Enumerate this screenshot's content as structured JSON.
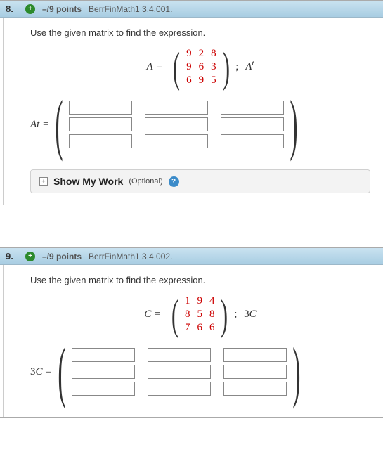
{
  "questions": [
    {
      "number": "8.",
      "points": "–/9 points",
      "source": "BerrFinMath1 3.4.001.",
      "prompt": "Use the given matrix to find the expression.",
      "matrixVar": "A",
      "matrixVarSup": "t",
      "matrix": [
        [
          "9",
          "2",
          "8"
        ],
        [
          "9",
          "6",
          "3"
        ],
        [
          "6",
          "9",
          "5"
        ]
      ],
      "rhsLabel": "A",
      "rhsSup": "t",
      "answerLhs": "A",
      "answerSup": "t",
      "showMyWork": {
        "label": "Show My Work",
        "optional": "(Optional)"
      }
    },
    {
      "number": "9.",
      "points": "–/9 points",
      "source": "BerrFinMath1 3.4.002.",
      "prompt": "Use the given matrix to find the expression.",
      "matrixVar": "C",
      "matrixVarSup": "",
      "matrix": [
        [
          "1",
          "9",
          "4"
        ],
        [
          "8",
          "5",
          "8"
        ],
        [
          "7",
          "6",
          "6"
        ]
      ],
      "rhsLabel": "3C",
      "rhsSup": "",
      "answerLhs": "3C",
      "answerSup": ""
    }
  ],
  "colors": {
    "headerGradTop": "#c9e2f0",
    "headerGradBot": "#a8cde2",
    "matrixNum": "#c00000",
    "plusBg": "#2c8a2c",
    "helpBg": "#3b8bc9"
  }
}
